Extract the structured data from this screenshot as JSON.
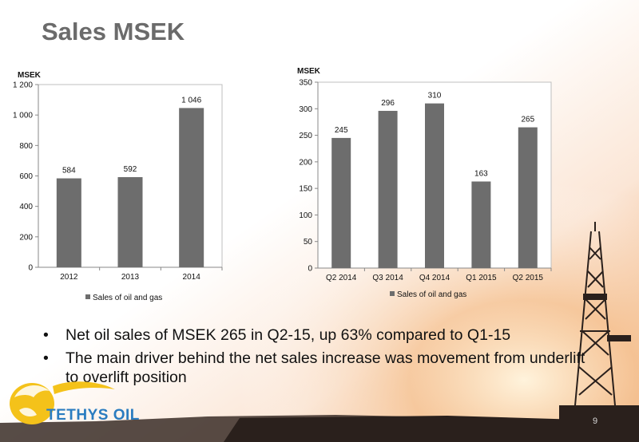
{
  "page": {
    "title": "Sales MSEK",
    "page_number": "9",
    "logo_text": "TETHYS OIL"
  },
  "bullets": [
    "Net oil sales of MSEK 265 in Q2-15, up 63% compared to Q1-15",
    "The main driver behind the net sales increase was movement from underlift to overlift position"
  ],
  "chart_data": [
    {
      "type": "bar",
      "title": "",
      "ylabel": "MSEK",
      "xlabel": "",
      "categories": [
        "2012",
        "2013",
        "2014"
      ],
      "series": [
        {
          "name": "Sales of oil and gas",
          "values": [
            584,
            592,
            1046
          ]
        }
      ],
      "data_labels": [
        "584",
        "592",
        "1 046"
      ],
      "ylim": [
        0,
        1200
      ],
      "yticks": [
        0,
        200,
        400,
        600,
        800,
        1000,
        1200
      ],
      "ytick_labels": [
        "0",
        "200",
        "400",
        "600",
        "800",
        "1 000",
        "1 200"
      ],
      "legend": "bottom",
      "grid": false,
      "bar_color": "#6d6d6d"
    },
    {
      "type": "bar",
      "title": "",
      "ylabel": "MSEK",
      "xlabel": "",
      "categories": [
        "Q2 2014",
        "Q3 2014",
        "Q4 2014",
        "Q1 2015",
        "Q2 2015"
      ],
      "series": [
        {
          "name": "Sales of oil and gas",
          "values": [
            245,
            296,
            310,
            163,
            265
          ]
        }
      ],
      "data_labels": [
        "245",
        "296",
        "310",
        "163",
        "265"
      ],
      "ylim": [
        0,
        350
      ],
      "yticks": [
        0,
        50,
        100,
        150,
        200,
        250,
        300,
        350
      ],
      "ytick_labels": [
        "0",
        "50",
        "100",
        "150",
        "200",
        "250",
        "300",
        "350"
      ],
      "legend": "bottom",
      "grid": false,
      "bar_color": "#6d6d6d"
    }
  ]
}
